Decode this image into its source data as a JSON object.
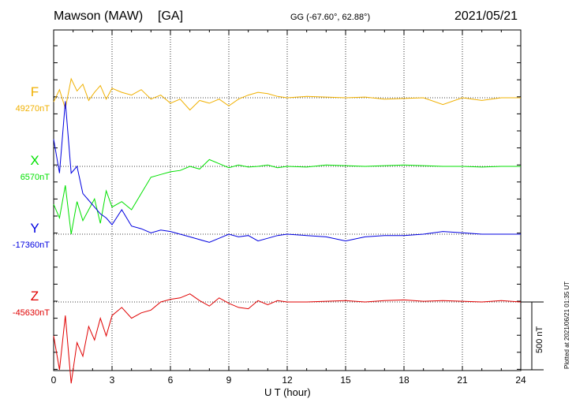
{
  "header": {
    "station": "Mawson (MAW)",
    "network": "[GA]",
    "coords": "GG (-67.60°,  62.88°)",
    "date": "2021/05/21"
  },
  "xaxis_label": "U T (hour)",
  "scale_label": "500 nT",
  "plotted_note": "Plotted at 2021/06/21 01:35 UT",
  "chart_data": {
    "type": "line",
    "title": "Mawson (MAW)  [GA]",
    "xlabel": "U T (hour)",
    "xlim": [
      0,
      24
    ],
    "xticks": [
      0,
      3,
      6,
      9,
      12,
      15,
      18,
      21,
      24
    ],
    "scale_bar_nT": 500,
    "grid": true,
    "series": [
      {
        "name": "F",
        "baseline": "49270nT",
        "color": "#f0b000",
        "x": [
          0,
          0.3,
          0.6,
          0.9,
          1.2,
          1.5,
          1.8,
          2.1,
          2.4,
          2.7,
          3,
          3.5,
          4,
          4.5,
          5,
          5.5,
          6,
          6.5,
          7,
          7.5,
          8,
          8.5,
          9,
          9.5,
          10,
          10.5,
          11,
          11.5,
          12,
          13,
          14,
          15,
          16,
          17,
          18,
          19,
          20,
          21,
          22,
          23,
          24
        ],
        "y": [
          -30,
          60,
          -80,
          140,
          50,
          100,
          -20,
          40,
          90,
          -10,
          70,
          40,
          20,
          60,
          -10,
          20,
          -40,
          -10,
          -90,
          -20,
          -40,
          -10,
          -60,
          -10,
          20,
          40,
          30,
          10,
          0,
          10,
          5,
          0,
          5,
          -10,
          -5,
          0,
          -50,
          0,
          -20,
          0,
          0
        ]
      },
      {
        "name": "X",
        "baseline": "6570nT",
        "color": "#00e000",
        "x": [
          0,
          0.3,
          0.6,
          0.9,
          1.2,
          1.5,
          1.8,
          2.1,
          2.4,
          2.7,
          3,
          3.5,
          4,
          4.5,
          5,
          5.5,
          6,
          6.5,
          7,
          7.5,
          8,
          8.5,
          9,
          9.5,
          10,
          10.5,
          11,
          11.5,
          12,
          13,
          14,
          15,
          16,
          17,
          18,
          19,
          20,
          21,
          22,
          23,
          24
        ],
        "y": [
          -280,
          -380,
          -140,
          -500,
          -260,
          -400,
          -320,
          -240,
          -420,
          -180,
          -300,
          -260,
          -320,
          -200,
          -80,
          -60,
          -40,
          -30,
          0,
          -20,
          50,
          20,
          -10,
          10,
          -5,
          0,
          10,
          -10,
          0,
          -5,
          10,
          5,
          0,
          5,
          10,
          5,
          0,
          0,
          -5,
          0,
          0
        ]
      },
      {
        "name": "Y",
        "baseline": "-17360nT",
        "color": "#0000e0",
        "x": [
          0,
          0.3,
          0.6,
          0.9,
          1.2,
          1.5,
          1.8,
          2.1,
          2.4,
          2.7,
          3,
          3.5,
          4,
          4.5,
          5,
          5.5,
          6,
          6.5,
          7,
          7.5,
          8,
          8.5,
          9,
          9.5,
          10,
          10.5,
          11,
          11.5,
          12,
          13,
          14,
          15,
          16,
          17,
          18,
          19,
          20,
          21,
          22,
          23,
          24
        ],
        "y": [
          700,
          450,
          980,
          450,
          500,
          300,
          250,
          200,
          150,
          120,
          70,
          180,
          60,
          40,
          10,
          30,
          20,
          0,
          -20,
          -40,
          -60,
          -30,
          0,
          -20,
          -10,
          -50,
          -30,
          -10,
          0,
          -10,
          -20,
          -50,
          -20,
          -10,
          -10,
          0,
          20,
          10,
          0,
          0,
          0
        ]
      },
      {
        "name": "Z",
        "baseline": "-45630nT",
        "color": "#e00000",
        "x": [
          0,
          0.3,
          0.6,
          0.9,
          1.2,
          1.5,
          1.8,
          2.1,
          2.4,
          2.7,
          3,
          3.5,
          4,
          4.5,
          5,
          5.5,
          6,
          6.5,
          7,
          7.5,
          8,
          8.5,
          9,
          9.5,
          10,
          10.5,
          11,
          11.5,
          12,
          13,
          14,
          15,
          16,
          17,
          18,
          19,
          20,
          21,
          22,
          23,
          24
        ],
        "y": [
          -250,
          -500,
          -100,
          -600,
          -300,
          -400,
          -180,
          -280,
          -120,
          -250,
          -100,
          -40,
          -120,
          -80,
          -60,
          0,
          20,
          30,
          60,
          10,
          -30,
          30,
          -10,
          -40,
          -50,
          10,
          -20,
          10,
          0,
          0,
          5,
          10,
          0,
          10,
          15,
          5,
          10,
          5,
          0,
          10,
          0
        ]
      }
    ]
  }
}
